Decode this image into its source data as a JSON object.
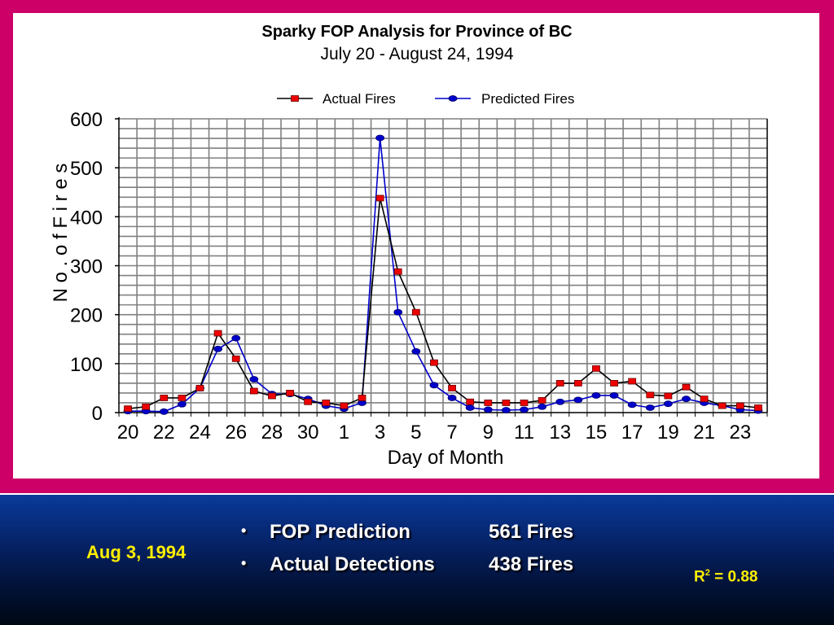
{
  "slide": {
    "caption_date": "Aug 3, 1994",
    "bullets": [
      {
        "label": "FOP Prediction",
        "value": "561 Fires"
      },
      {
        "label": "Actual Detections",
        "value": "438 Fires"
      }
    ],
    "r2_prefix": "R",
    "r2_exp": "2",
    "r2_suffix": " = 0.88",
    "colors": {
      "frame": "#cc0066",
      "caption": "#ffee00"
    }
  },
  "chart_data": {
    "type": "line",
    "title": "Sparky FOP Analysis for Province of BC",
    "subtitle": "July 20 - August 24, 1994",
    "xlabel": "Day of Month",
    "ylabel": "N o .  o f   F i r e s",
    "ylim": [
      0,
      600
    ],
    "yticks": [
      0,
      100,
      200,
      300,
      400,
      500,
      600
    ],
    "grid": true,
    "legend_position": "top-center",
    "x": [
      "20",
      "21",
      "22",
      "23",
      "24",
      "25",
      "26",
      "27",
      "28",
      "29",
      "30",
      "31",
      "1",
      "2",
      "3",
      "4",
      "5",
      "6",
      "7",
      "8",
      "9",
      "10",
      "11",
      "12",
      "13",
      "14",
      "15",
      "16",
      "17",
      "18",
      "19",
      "20",
      "21",
      "22",
      "23",
      "24"
    ],
    "xtick_labels": [
      "20",
      "22",
      "24",
      "26",
      "28",
      "30",
      "1",
      "3",
      "5",
      "7",
      "9",
      "11",
      "13",
      "15",
      "17",
      "19",
      "21",
      "23"
    ],
    "series": [
      {
        "name": "Actual Fires",
        "color": "#000000",
        "marker": "square-red",
        "values": [
          8,
          12,
          30,
          30,
          50,
          162,
          110,
          44,
          34,
          40,
          22,
          20,
          14,
          30,
          438,
          288,
          205,
          102,
          50,
          22,
          20,
          20,
          20,
          25,
          60,
          60,
          90,
          60,
          64,
          36,
          34,
          52,
          28,
          14,
          14,
          10
        ]
      },
      {
        "name": "Predicted Fires",
        "color": "#0000cc",
        "marker": "circle-blue",
        "values": [
          3,
          3,
          2,
          17,
          50,
          130,
          152,
          68,
          38,
          38,
          28,
          14,
          8,
          20,
          561,
          205,
          125,
          56,
          30,
          10,
          6,
          5,
          6,
          12,
          22,
          26,
          35,
          35,
          16,
          10,
          18,
          28,
          20,
          14,
          6,
          4
        ]
      }
    ]
  }
}
